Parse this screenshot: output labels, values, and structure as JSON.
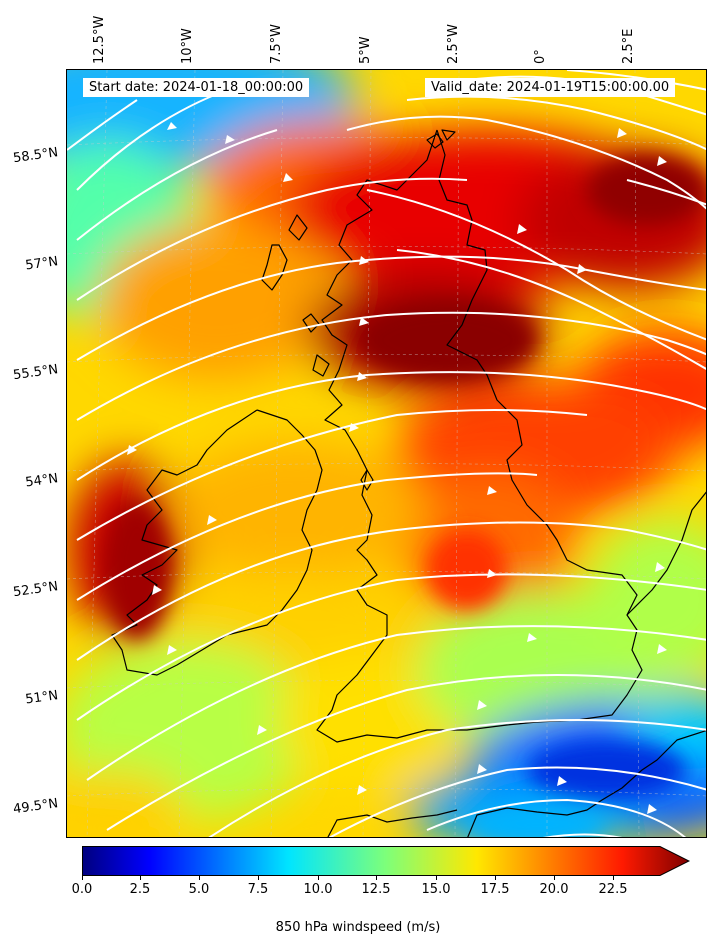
{
  "map": {
    "start_date": "Start date: 2024-01-18_00:00:00",
    "valid_date": "Valid_date: 2024-01-19T15:00:00.00",
    "longitude_labels": [
      "12.5°W",
      "10°W",
      "7.5°W",
      "5°W",
      "2.5°W",
      "0°",
      "2.5°E"
    ],
    "latitude_labels": [
      "58.5°N",
      "57°N",
      "55.5°N",
      "54°N",
      "52.5°N",
      "51°N",
      "49.5°N"
    ],
    "field": "850 hPa windspeed",
    "overlay": "streamlines",
    "colormap": "jet",
    "coastline_color": "#000000",
    "streamline_color": "#ffffff"
  },
  "colorbar": {
    "label": "850 hPa windspeed (m/s)",
    "ticks": [
      "0.0",
      "2.5",
      "5.0",
      "7.5",
      "10.0",
      "12.5",
      "15.0",
      "17.5",
      "20.0",
      "22.5"
    ],
    "min": 0,
    "max": 25,
    "extend": "max"
  }
}
